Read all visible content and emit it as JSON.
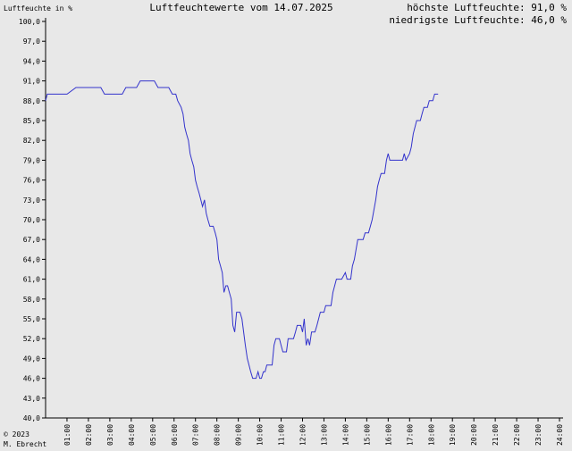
{
  "chart_data": {
    "type": "line",
    "title": "Luftfeuchtewerte vom 14.07.2025",
    "ylabel": "Luftfeuchte in %",
    "xlabel": "",
    "stats": {
      "max_label": "höchste Luftfeuchte: 91,0 %",
      "min_label": "niedrigste Luftfeuchte: 46,0 %"
    },
    "copyright": {
      "line1": "© 2023",
      "line2": "M. Ebrecht"
    },
    "ylim": [
      40,
      100
    ],
    "yticks": [
      {
        "v": 100,
        "label": "100,0"
      },
      {
        "v": 97,
        "label": "97,0"
      },
      {
        "v": 94,
        "label": "94,0"
      },
      {
        "v": 91,
        "label": "91,0"
      },
      {
        "v": 88,
        "label": "88,0"
      },
      {
        "v": 85,
        "label": "85,0"
      },
      {
        "v": 82,
        "label": "82,0"
      },
      {
        "v": 79,
        "label": "79,0"
      },
      {
        "v": 76,
        "label": "76,0"
      },
      {
        "v": 73,
        "label": "73,0"
      },
      {
        "v": 70,
        "label": "70,0"
      },
      {
        "v": 67,
        "label": "67,0"
      },
      {
        "v": 64,
        "label": "64,0"
      },
      {
        "v": 61,
        "label": "61,0"
      },
      {
        "v": 58,
        "label": "58,0"
      },
      {
        "v": 55,
        "label": "55,0"
      },
      {
        "v": 52,
        "label": "52,0"
      },
      {
        "v": 49,
        "label": "49,0"
      },
      {
        "v": 46,
        "label": "46,0"
      },
      {
        "v": 43,
        "label": "43,0"
      },
      {
        "v": 40,
        "label": "40,0"
      }
    ],
    "xlim": [
      0,
      24
    ],
    "xticks": [
      {
        "v": 1,
        "label": "01:00"
      },
      {
        "v": 2,
        "label": "02:00"
      },
      {
        "v": 3,
        "label": "03:00"
      },
      {
        "v": 4,
        "label": "04:00"
      },
      {
        "v": 5,
        "label": "05:00"
      },
      {
        "v": 6,
        "label": "06:00"
      },
      {
        "v": 7,
        "label": "07:00"
      },
      {
        "v": 8,
        "label": "08:00"
      },
      {
        "v": 9,
        "label": "09:00"
      },
      {
        "v": 10,
        "label": "10:00"
      },
      {
        "v": 11,
        "label": "11:00"
      },
      {
        "v": 12,
        "label": "12:00"
      },
      {
        "v": 13,
        "label": "13:00"
      },
      {
        "v": 14,
        "label": "14:00"
      },
      {
        "v": 15,
        "label": "15:00"
      },
      {
        "v": 16,
        "label": "16:00"
      },
      {
        "v": 17,
        "label": "17:00"
      },
      {
        "v": 18,
        "label": "18:00"
      },
      {
        "v": 19,
        "label": "19:00"
      },
      {
        "v": 20,
        "label": "20:00"
      },
      {
        "v": 21,
        "label": "21:00"
      },
      {
        "v": 22,
        "label": "22:00"
      },
      {
        "v": 23,
        "label": "23:00"
      },
      {
        "v": 24,
        "label": "24:00"
      }
    ],
    "series": [
      {
        "color": "#3333cc",
        "points": [
          [
            0.0,
            88
          ],
          [
            0.08,
            89
          ],
          [
            1.0,
            89
          ],
          [
            1.42,
            90
          ],
          [
            2.58,
            90
          ],
          [
            2.75,
            89
          ],
          [
            3.58,
            89
          ],
          [
            3.75,
            90
          ],
          [
            4.25,
            90
          ],
          [
            4.42,
            91
          ],
          [
            5.08,
            91
          ],
          [
            5.25,
            90
          ],
          [
            5.75,
            90
          ],
          [
            5.92,
            89
          ],
          [
            6.08,
            89
          ],
          [
            6.17,
            88
          ],
          [
            6.33,
            87
          ],
          [
            6.42,
            86
          ],
          [
            6.5,
            84
          ],
          [
            6.58,
            83
          ],
          [
            6.67,
            82
          ],
          [
            6.75,
            80
          ],
          [
            6.83,
            79
          ],
          [
            6.92,
            78
          ],
          [
            7.0,
            76
          ],
          [
            7.08,
            75
          ],
          [
            7.17,
            74
          ],
          [
            7.25,
            73
          ],
          [
            7.33,
            72
          ],
          [
            7.42,
            73
          ],
          [
            7.5,
            71
          ],
          [
            7.58,
            70
          ],
          [
            7.67,
            69
          ],
          [
            7.83,
            69
          ],
          [
            7.92,
            68
          ],
          [
            8.0,
            67
          ],
          [
            8.08,
            64
          ],
          [
            8.17,
            63
          ],
          [
            8.25,
            62
          ],
          [
            8.33,
            59
          ],
          [
            8.42,
            60
          ],
          [
            8.5,
            60
          ],
          [
            8.58,
            59
          ],
          [
            8.67,
            58
          ],
          [
            8.75,
            54
          ],
          [
            8.83,
            53
          ],
          [
            8.92,
            56
          ],
          [
            9.08,
            56
          ],
          [
            9.17,
            55
          ],
          [
            9.25,
            53
          ],
          [
            9.33,
            51
          ],
          [
            9.42,
            49
          ],
          [
            9.5,
            48
          ],
          [
            9.58,
            47
          ],
          [
            9.67,
            46
          ],
          [
            9.83,
            46
          ],
          [
            9.92,
            47
          ],
          [
            10.0,
            46
          ],
          [
            10.08,
            46
          ],
          [
            10.17,
            47
          ],
          [
            10.25,
            47
          ],
          [
            10.33,
            48
          ],
          [
            10.58,
            48
          ],
          [
            10.67,
            51
          ],
          [
            10.75,
            52
          ],
          [
            10.92,
            52
          ],
          [
            11.0,
            51
          ],
          [
            11.08,
            50
          ],
          [
            11.25,
            50
          ],
          [
            11.33,
            52
          ],
          [
            11.58,
            52
          ],
          [
            11.67,
            53
          ],
          [
            11.75,
            54
          ],
          [
            11.92,
            54
          ],
          [
            12.0,
            53
          ],
          [
            12.08,
            55
          ],
          [
            12.17,
            51
          ],
          [
            12.25,
            52
          ],
          [
            12.33,
            51
          ],
          [
            12.42,
            53
          ],
          [
            12.58,
            53
          ],
          [
            12.67,
            54
          ],
          [
            12.83,
            56
          ],
          [
            13.0,
            56
          ],
          [
            13.08,
            57
          ],
          [
            13.33,
            57
          ],
          [
            13.42,
            59
          ],
          [
            13.58,
            61
          ],
          [
            13.83,
            61
          ],
          [
            14.0,
            62
          ],
          [
            14.08,
            61
          ],
          [
            14.25,
            61
          ],
          [
            14.33,
            63
          ],
          [
            14.42,
            64
          ],
          [
            14.58,
            67
          ],
          [
            14.83,
            67
          ],
          [
            14.92,
            68
          ],
          [
            15.08,
            68
          ],
          [
            15.17,
            69
          ],
          [
            15.25,
            70
          ],
          [
            15.42,
            73
          ],
          [
            15.5,
            75
          ],
          [
            15.58,
            76
          ],
          [
            15.67,
            77
          ],
          [
            15.83,
            77
          ],
          [
            15.92,
            79
          ],
          [
            16.0,
            80
          ],
          [
            16.08,
            79
          ],
          [
            16.5,
            79
          ],
          [
            16.67,
            79
          ],
          [
            16.75,
            80
          ],
          [
            16.83,
            79
          ],
          [
            17.0,
            80
          ],
          [
            17.08,
            81
          ],
          [
            17.17,
            83
          ],
          [
            17.25,
            84
          ],
          [
            17.33,
            85
          ],
          [
            17.5,
            85
          ],
          [
            17.58,
            86
          ],
          [
            17.67,
            87
          ],
          [
            17.83,
            87
          ],
          [
            17.92,
            88
          ],
          [
            18.08,
            88
          ],
          [
            18.17,
            89
          ],
          [
            18.33,
            89
          ]
        ]
      }
    ]
  }
}
